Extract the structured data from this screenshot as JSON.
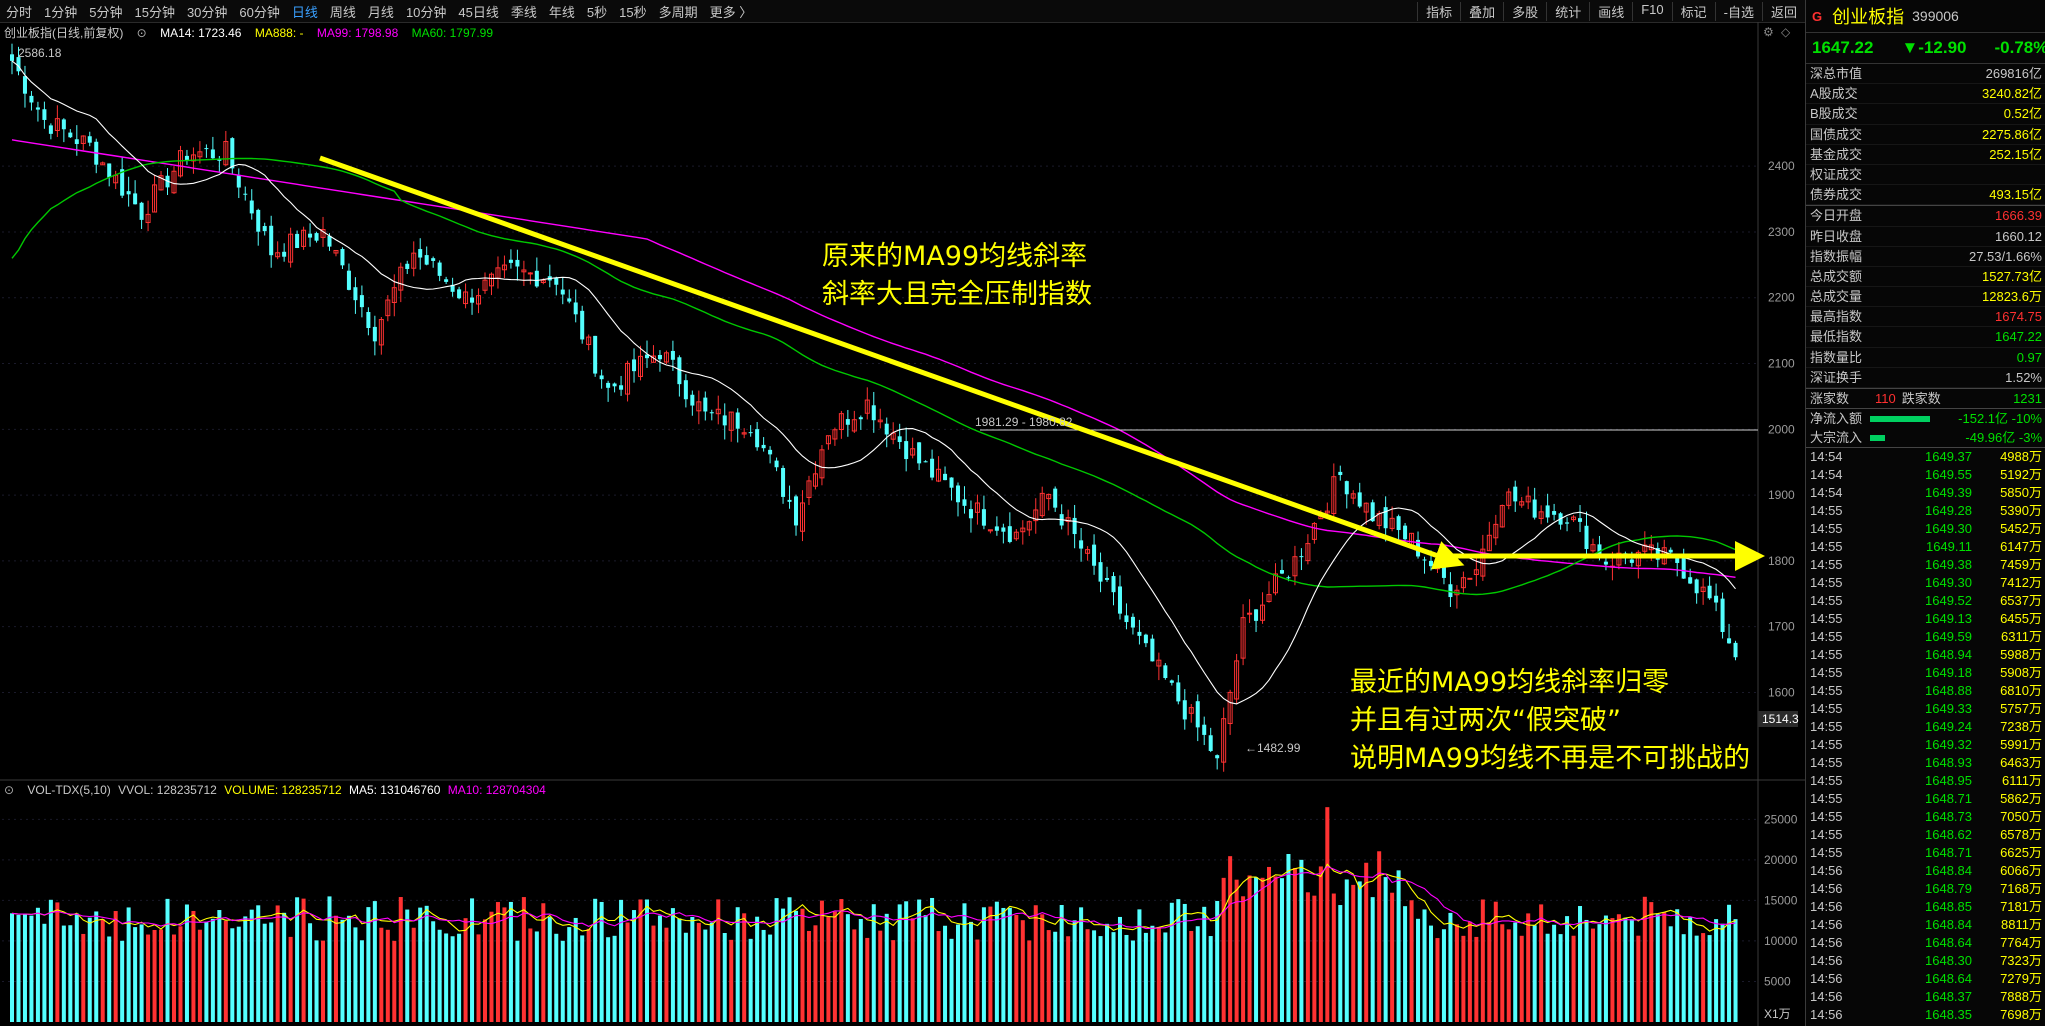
{
  "toolbar": {
    "periods": [
      "分时",
      "1分钟",
      "5分钟",
      "15分钟",
      "30分钟",
      "60分钟",
      "日线",
      "周线",
      "月线",
      "10分钟",
      "45日线",
      "季线",
      "年线",
      "5秒",
      "15秒",
      "多周期",
      "更多 〉"
    ],
    "active": "日线",
    "tools": [
      "指标",
      "叠加",
      "多股",
      "统计",
      "画线",
      "F10",
      "标记",
      "-自选",
      "返回"
    ]
  },
  "main_legend": {
    "title": "创业板指(日线,前复权)",
    "ma14": "MA14: 1723.46",
    "ma888": "MA888: -",
    "ma99": "MA99: 1798.98",
    "ma60": "MA60: 1797.99"
  },
  "colors": {
    "up": "#ff3232",
    "down": "#54ffff",
    "ma14": "#ffffff",
    "ma99": "#ff00ff",
    "ma60": "#00c800",
    "arrow": "#ffff00",
    "vol_ma5": "#ffff00",
    "vol_ma10": "#ff00ff"
  },
  "annotations": {
    "text1_line1": "原来的MA99均线斜率",
    "text1_line2": "斜率大且完全压制指数",
    "text2_line1": "最近的MA99均线斜率归零",
    "text2_line2": "并且有过两次“假突破”",
    "text2_line3": "说明MA99均线不再是不可挑战的"
  },
  "markers": {
    "high": "2586.18",
    "low": "←1482.99",
    "mid": "1981.29 - 1980.82",
    "last_price_tag": "1514.3"
  },
  "volume_legend": {
    "title": "VOL-TDX(5,10)",
    "vvol": "VVOL: 128235712",
    "volume": "VOLUME: 128235712",
    "ma5": "MA5: 131046760",
    "ma10": "MA10: 128704304",
    "unit": "X1万"
  },
  "chart_data": [
    {
      "type": "candlestick",
      "title": "创业板指(日线,前复权)",
      "y_ticks": [
        2400,
        2300,
        2200,
        2100,
        2000,
        1900,
        1800,
        1700,
        1600
      ],
      "ylim": [
        1470,
        2610
      ],
      "high": 2586.18,
      "low": 1482.99,
      "reference_line": 1985,
      "series": [
        {
          "name": "MA14",
          "value": 1723.46
        },
        {
          "name": "MA99",
          "value": 1798.98
        },
        {
          "name": "MA60",
          "value": 1797.99
        }
      ],
      "anchors": [
        [
          0,
          2560
        ],
        [
          5,
          2470
        ],
        [
          12,
          2430
        ],
        [
          20,
          2330
        ],
        [
          27,
          2420
        ],
        [
          33,
          2420
        ],
        [
          40,
          2270
        ],
        [
          48,
          2300
        ],
        [
          56,
          2150
        ],
        [
          62,
          2270
        ],
        [
          70,
          2200
        ],
        [
          77,
          2240
        ],
        [
          84,
          2230
        ],
        [
          92,
          2060
        ],
        [
          100,
          2120
        ],
        [
          107,
          2020
        ],
        [
          114,
          2010
        ],
        [
          121,
          1870
        ],
        [
          126,
          2000
        ],
        [
          132,
          2040
        ],
        [
          140,
          1950
        ],
        [
          148,
          1880
        ],
        [
          155,
          1840
        ],
        [
          160,
          1900
        ],
        [
          168,
          1770
        ],
        [
          175,
          1660
        ],
        [
          182,
          1560
        ],
        [
          186,
          1500
        ],
        [
          190,
          1700
        ],
        [
          198,
          1800
        ],
        [
          205,
          1930
        ],
        [
          210,
          1870
        ],
        [
          216,
          1830
        ],
        [
          222,
          1760
        ],
        [
          226,
          1790
        ],
        [
          230,
          1900
        ],
        [
          235,
          1880
        ],
        [
          240,
          1870
        ],
        [
          246,
          1800
        ],
        [
          252,
          1810
        ],
        [
          257,
          1800
        ],
        [
          262,
          1740
        ],
        [
          266,
          1660
        ]
      ]
    },
    {
      "type": "bar",
      "title": "VOL-TDX(5,10)",
      "y_ticks": [
        25000,
        20000,
        15000,
        10000,
        5000
      ],
      "ylim": [
        0,
        28000
      ],
      "unit": "万",
      "latest": {
        "volume": 128235712,
        "ma5": 131046760,
        "ma10": 128704304
      }
    }
  ],
  "panel": {
    "g": "G",
    "name": "创业板指",
    "code": "399006",
    "price": "1647.22",
    "change": "▼-12.90",
    "pct": "-0.78%",
    "group1": [
      {
        "label": "深总市值",
        "value": "269816亿",
        "color": "#c8c8c8"
      },
      {
        "label": "A股成交",
        "value": "3240.82亿",
        "color": "#ffff00"
      },
      {
        "label": "B股成交",
        "value": "0.52亿",
        "color": "#ffff00"
      },
      {
        "label": "国债成交",
        "value": "2275.86亿",
        "color": "#ffff00"
      },
      {
        "label": "基金成交",
        "value": "252.15亿",
        "color": "#ffff00"
      },
      {
        "label": "权证成交",
        "value": "",
        "color": "#ffff00"
      },
      {
        "label": "债券成交",
        "value": "493.15亿",
        "color": "#ffff00"
      }
    ],
    "group2": [
      {
        "label": "今日开盘",
        "value": "1666.39",
        "color": "#ff3030"
      },
      {
        "label": "昨日收盘",
        "value": "1660.12",
        "color": "#c8c8c8"
      },
      {
        "label": "指数振幅",
        "value": "27.53/1.66%",
        "color": "#c8c8c8"
      },
      {
        "label": "总成交额",
        "value": "1527.73亿",
        "color": "#ffff00"
      },
      {
        "label": "总成交量",
        "value": "12823.6万",
        "color": "#ffff00"
      },
      {
        "label": "最高指数",
        "value": "1674.75",
        "color": "#ff3030"
      },
      {
        "label": "最低指数",
        "value": "1647.22",
        "color": "#00e000"
      },
      {
        "label": "指数量比",
        "value": "0.97",
        "color": "#00e000"
      },
      {
        "label": "深证换手",
        "value": "1.52%",
        "color": "#c8c8c8"
      }
    ],
    "breadth": {
      "up_label": "涨家数",
      "up": "110",
      "down_label": "跌家数",
      "down": "1231"
    },
    "flows": [
      {
        "label": "净流入额",
        "value": "-152.1亿 -10%",
        "bar": 0.6
      },
      {
        "label": "大宗流入",
        "value": "-49.96亿 -3%",
        "bar": 0.15
      }
    ],
    "ticks": [
      [
        "14:54",
        "1649.37",
        "4988万"
      ],
      [
        "14:54",
        "1649.55",
        "5192万"
      ],
      [
        "14:54",
        "1649.39",
        "5850万"
      ],
      [
        "14:55",
        "1649.28",
        "5390万"
      ],
      [
        "14:55",
        "1649.30",
        "5452万"
      ],
      [
        "14:55",
        "1649.11",
        "6147万"
      ],
      [
        "14:55",
        "1649.38",
        "7459万"
      ],
      [
        "14:55",
        "1649.30",
        "7412万"
      ],
      [
        "14:55",
        "1649.52",
        "6537万"
      ],
      [
        "14:55",
        "1649.13",
        "6455万"
      ],
      [
        "14:55",
        "1649.59",
        "6311万"
      ],
      [
        "14:55",
        "1648.94",
        "5988万"
      ],
      [
        "14:55",
        "1649.18",
        "5908万"
      ],
      [
        "14:55",
        "1648.88",
        "6810万"
      ],
      [
        "14:55",
        "1649.33",
        "5757万"
      ],
      [
        "14:55",
        "1649.24",
        "7238万"
      ],
      [
        "14:55",
        "1649.32",
        "5991万"
      ],
      [
        "14:55",
        "1648.93",
        "6463万"
      ],
      [
        "14:55",
        "1648.95",
        "6111万"
      ],
      [
        "14:55",
        "1648.71",
        "5862万"
      ],
      [
        "14:55",
        "1648.73",
        "7050万"
      ],
      [
        "14:55",
        "1648.62",
        "6578万"
      ],
      [
        "14:55",
        "1648.71",
        "6625万"
      ],
      [
        "14:56",
        "1648.84",
        "6066万"
      ],
      [
        "14:56",
        "1648.79",
        "7168万"
      ],
      [
        "14:56",
        "1648.85",
        "7181万"
      ],
      [
        "14:56",
        "1648.84",
        "8811万"
      ],
      [
        "14:56",
        "1648.64",
        "7764万"
      ],
      [
        "14:56",
        "1648.30",
        "7323万"
      ],
      [
        "14:56",
        "1648.64",
        "7279万"
      ],
      [
        "14:56",
        "1648.37",
        "7888万"
      ],
      [
        "14:56",
        "1648.35",
        "7698万"
      ]
    ]
  }
}
